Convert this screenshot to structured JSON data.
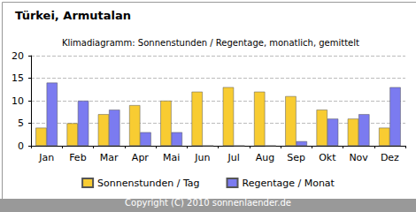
{
  "chart_data": {
    "type": "bar",
    "title": "Türkei, Armutalan",
    "subtitle": "Klimadiagramm: Sonnenstunden / Regentage, monatlich, gemittelt",
    "footer": "Copyright (C) 2010 sonnenlaender.de",
    "categories": [
      "Jan",
      "Feb",
      "Mar",
      "Apr",
      "Mai",
      "Jun",
      "Jul",
      "Aug",
      "Sep",
      "Okt",
      "Nov",
      "Dez"
    ],
    "series": [
      {
        "name": "Sonnenstunden / Tag",
        "color": "#f8cc32",
        "values": [
          4,
          5,
          7,
          9,
          10,
          12,
          13,
          12,
          11,
          8,
          6,
          4
        ]
      },
      {
        "name": "Regentage / Monat",
        "color": "#7b7bf0",
        "values": [
          14,
          10,
          8,
          3,
          3,
          0,
          0,
          0,
          1,
          6,
          7,
          13
        ]
      }
    ],
    "ylim": [
      0,
      20
    ],
    "yticks": [
      0,
      5,
      10,
      15,
      20
    ],
    "grid": true,
    "legend": "bottom"
  }
}
